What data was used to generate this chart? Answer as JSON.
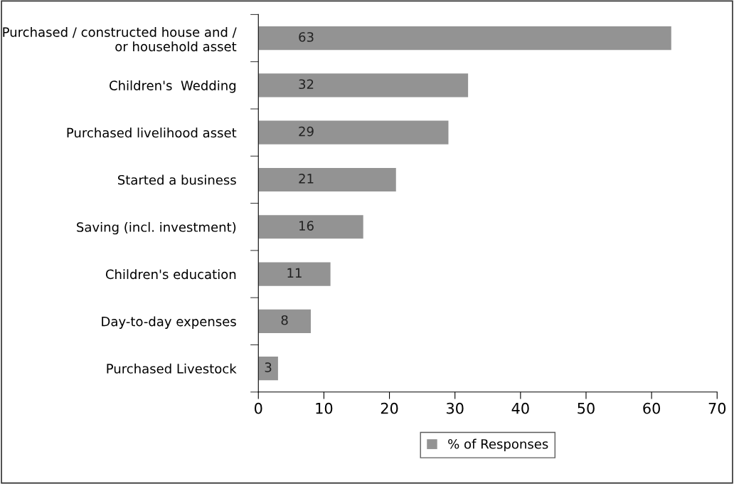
{
  "chart_data": {
    "type": "bar",
    "orientation": "horizontal",
    "categories": [
      "Purchased / constructed house and /\nor household asset",
      "Children's  Wedding",
      "Purchased livelihood asset",
      "Started a business",
      "Saving (incl. investment)",
      "Children's education",
      "Day-to-day expenses",
      "Purchased Livestock"
    ],
    "series": [
      {
        "name": "% of Responses",
        "color": "#939393",
        "values": [
          63,
          32,
          29,
          21,
          16,
          11,
          8,
          3
        ]
      }
    ],
    "xlim": [
      0,
      70
    ],
    "xticks": [
      0,
      10,
      20,
      30,
      40,
      50,
      60,
      70
    ],
    "grid": false,
    "legend": "bottom",
    "data_labels": true
  }
}
